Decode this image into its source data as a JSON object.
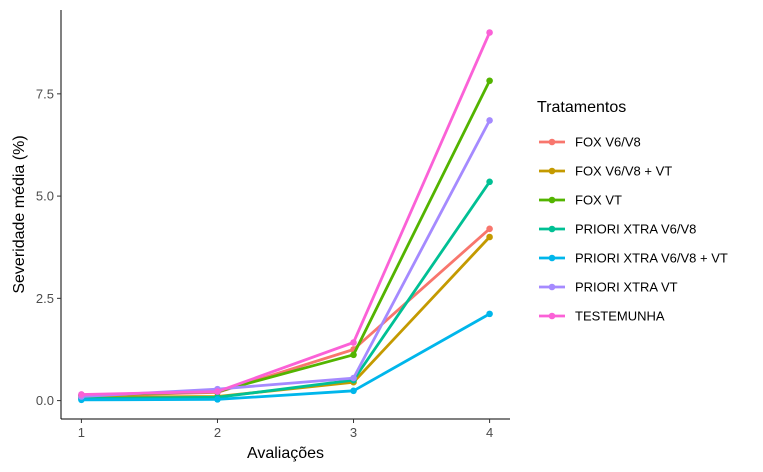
{
  "chart_data": {
    "type": "line",
    "xlabel": "Avaliações",
    "ylabel": "Severidade média (%)",
    "x": [
      1,
      2,
      3,
      4
    ],
    "x_tick_labels": [
      "1",
      "2",
      "3",
      "4"
    ],
    "xlim": [
      0.85,
      4.15
    ],
    "ylim": [
      -0.45,
      9.55
    ],
    "y_ticks": [
      0.0,
      2.5,
      5.0,
      7.5
    ],
    "y_tick_labels": [
      "0.0",
      "2.5",
      "5.0",
      "7.5"
    ],
    "grid": false,
    "legend_title": "Tratamentos",
    "legend_position": "right",
    "series": [
      {
        "name": "FOX V6/V8",
        "color": "#F8766D",
        "values": [
          0.12,
          0.2,
          1.25,
          4.2
        ]
      },
      {
        "name": "FOX V6/V8 + VT",
        "color": "#C49A00",
        "values": [
          0.08,
          0.1,
          0.45,
          4.0
        ]
      },
      {
        "name": "FOX VT",
        "color": "#53B400",
        "values": [
          0.13,
          0.22,
          1.12,
          7.82
        ]
      },
      {
        "name": "PRIORI XTRA V6/V8",
        "color": "#00C094",
        "values": [
          0.05,
          0.08,
          0.5,
          5.35
        ]
      },
      {
        "name": "PRIORI XTRA V6/V8 + VT",
        "color": "#00B6EB",
        "values": [
          0.02,
          0.03,
          0.24,
          2.12
        ]
      },
      {
        "name": "PRIORI XTRA VT",
        "color": "#A58AFF",
        "values": [
          0.1,
          0.28,
          0.55,
          6.85
        ]
      },
      {
        "name": "TESTEMUNHA",
        "color": "#FB61D7",
        "values": [
          0.15,
          0.22,
          1.42,
          9.0
        ]
      }
    ]
  }
}
